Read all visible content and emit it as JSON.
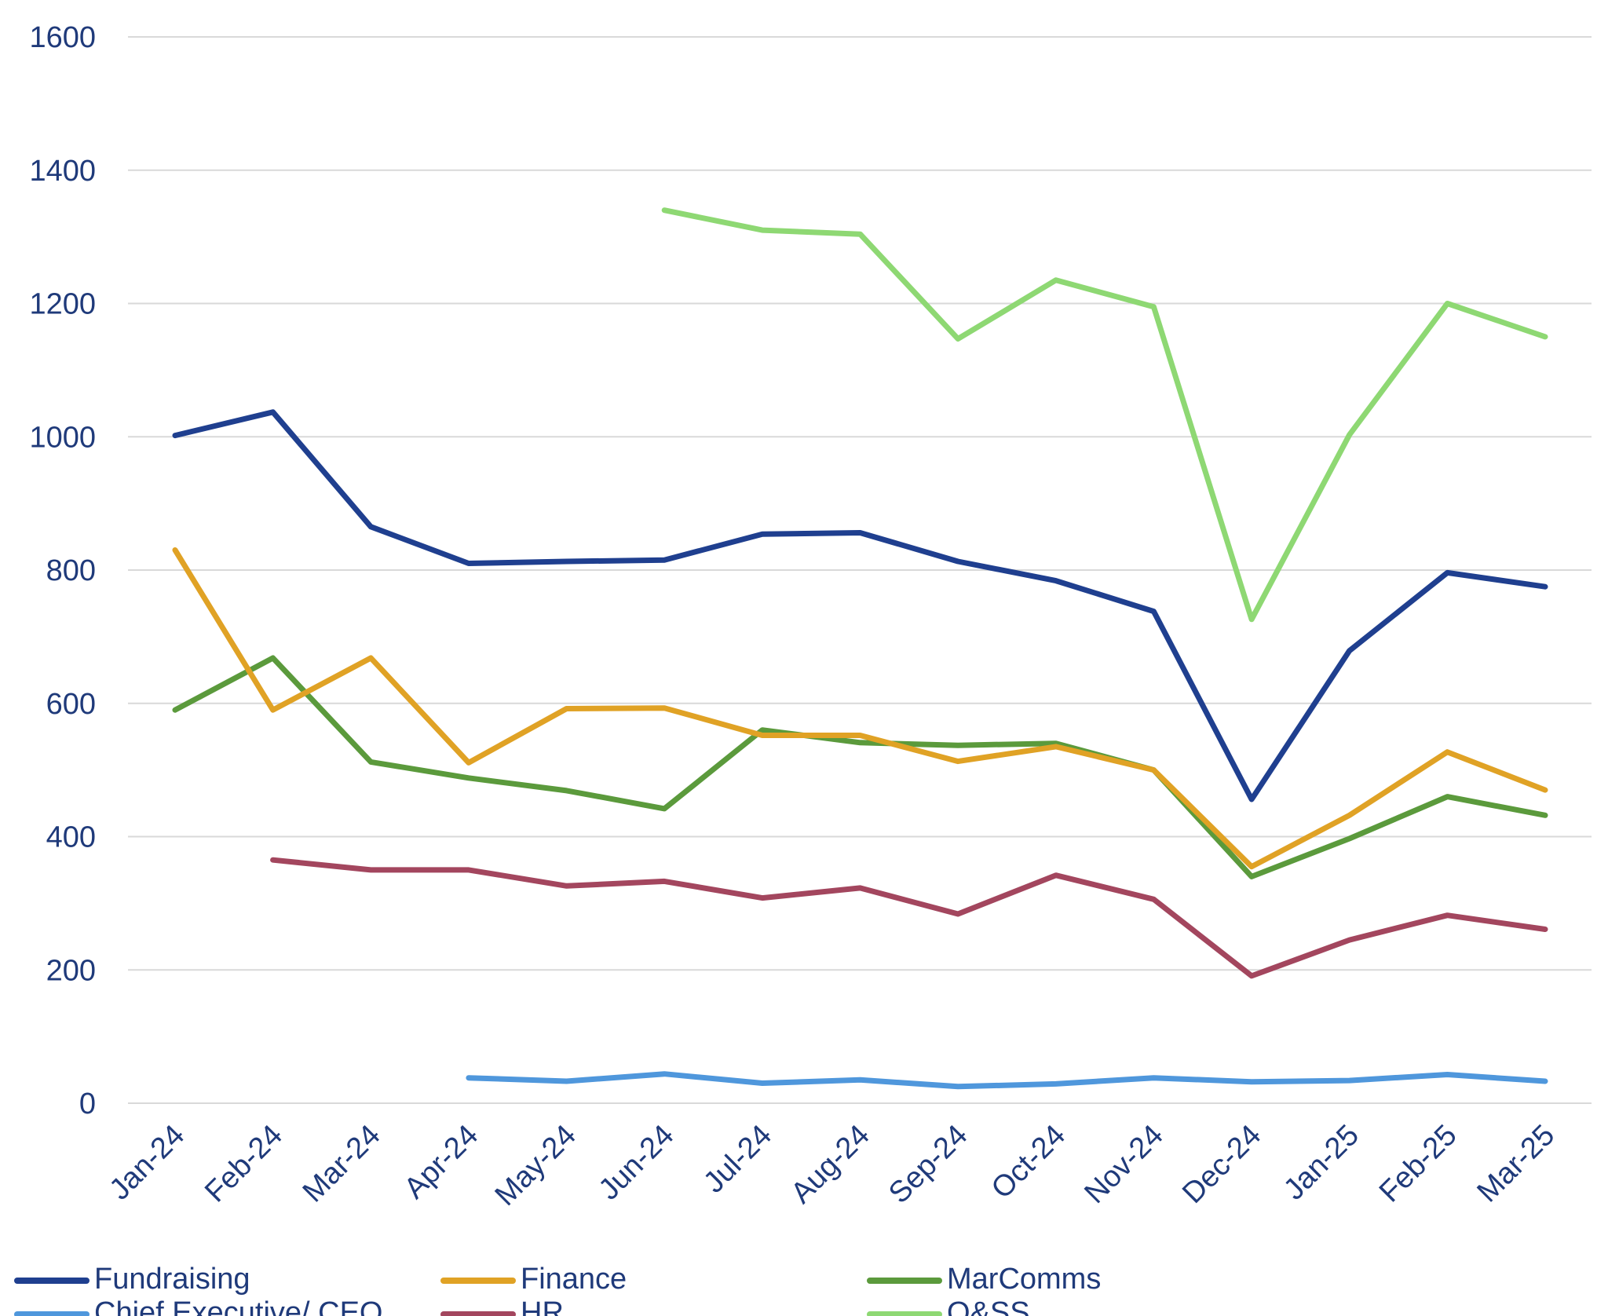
{
  "chart_data": {
    "type": "line",
    "title": "",
    "xlabel": "",
    "ylabel": "",
    "ylim": [
      0,
      1600
    ],
    "yticks": [
      0,
      200,
      400,
      600,
      800,
      1000,
      1200,
      1400,
      1600
    ],
    "grid": true,
    "legend_position": "bottom",
    "categories": [
      "Jan-24",
      "Feb-24",
      "Mar-24",
      "Apr-24",
      "May-24",
      "Jun-24",
      "Jul-24",
      "Aug-24",
      "Sep-24",
      "Oct-24",
      "Nov-24",
      "Dec-24",
      "Jan-25",
      "Feb-25",
      "Mar-25"
    ],
    "series": [
      {
        "name": "Fundraising",
        "color": "#1f3f8f",
        "values": [
          1002,
          1037,
          865,
          810,
          813,
          815,
          854,
          856,
          813,
          784,
          738,
          456,
          679,
          796,
          775
        ]
      },
      {
        "name": "Finance",
        "color": "#e0a225",
        "values": [
          830,
          590,
          668,
          511,
          592,
          593,
          552,
          552,
          513,
          535,
          500,
          355,
          432,
          527,
          470
        ]
      },
      {
        "name": "MarComms",
        "color": "#5b9a3c",
        "values": [
          590,
          668,
          512,
          488,
          469,
          442,
          560,
          541,
          537,
          540,
          500,
          340,
          397,
          460,
          432
        ]
      },
      {
        "name": "Chief Executive/ CEO",
        "color": "#4f97dc",
        "values": [
          null,
          null,
          null,
          38,
          33,
          44,
          30,
          35,
          25,
          29,
          38,
          32,
          34,
          43,
          33
        ]
      },
      {
        "name": "HR",
        "color": "#a3465e",
        "values": [
          null,
          365,
          350,
          350,
          326,
          333,
          308,
          323,
          284,
          342,
          306,
          191,
          245,
          282,
          261
        ]
      },
      {
        "name": "O&SS",
        "color": "#8ed873",
        "values": [
          null,
          null,
          null,
          null,
          null,
          1340,
          1310,
          1304,
          1147,
          1235,
          1195,
          726,
          1003,
          1200,
          1150
        ]
      }
    ]
  }
}
